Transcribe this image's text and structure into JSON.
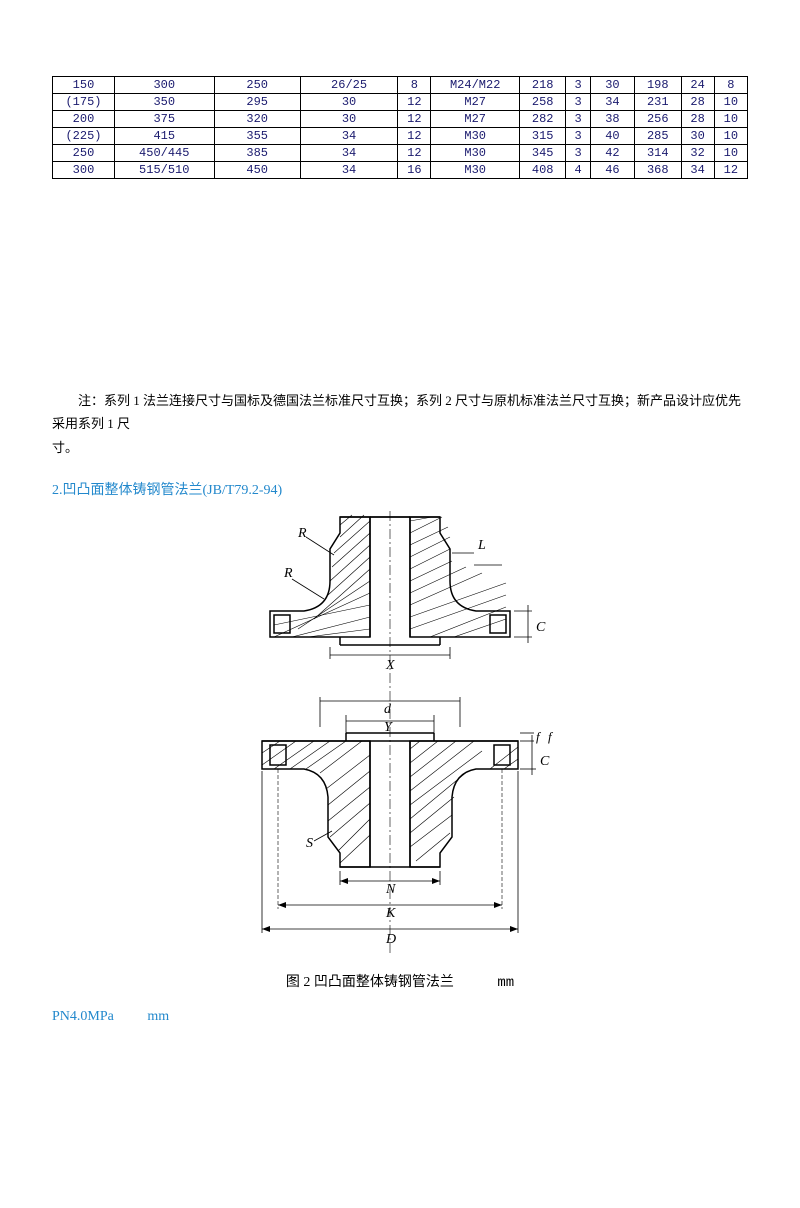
{
  "table": {
    "rows": [
      [
        "150",
        "300",
        "250",
        "26/25",
        "8",
        "M24/M22",
        "218",
        "3",
        "30",
        "198",
        "24",
        "8"
      ],
      [
        "(175)",
        "350",
        "295",
        "30",
        "12",
        "M27",
        "258",
        "3",
        "34",
        "231",
        "28",
        "10"
      ],
      [
        "200",
        "375",
        "320",
        "30",
        "12",
        "M27",
        "282",
        "3",
        "38",
        "256",
        "28",
        "10"
      ],
      [
        "(225)",
        "415",
        "355",
        "34",
        "12",
        "M30",
        "315",
        "3",
        "40",
        "285",
        "30",
        "10"
      ],
      [
        "250",
        "450/445",
        "385",
        "34",
        "12",
        "M30",
        "345",
        "3",
        "42",
        "314",
        "32",
        "10"
      ],
      [
        "300",
        "515/510",
        "450",
        "34",
        "16",
        "M30",
        "408",
        "4",
        "46",
        "368",
        "34",
        "12"
      ]
    ],
    "col_widths": [
      "56",
      "90",
      "78",
      "88",
      "30",
      "80",
      "42",
      "22",
      "40",
      "42",
      "30",
      "30"
    ]
  },
  "note": "注：系列 1 法兰连接尺寸与国标及德国法兰标准尺寸互换；系列 2 尺寸与原机标准法兰尺寸互换；新产品设计应优先采用系列 1 尺",
  "note_line2": "寸。",
  "section_title": "2.凹凸面整体铸钢管法兰(JB/T79.2-94)",
  "figure_caption": "图 2 凹凸面整体铸钢管法兰",
  "figure_unit": "mm",
  "spec_label": "PN4.0MPa",
  "spec_unit": "mm",
  "diagram_labels": {
    "R1": "R",
    "R2": "R",
    "L": "L",
    "C": "C",
    "X": "X",
    "d": "d",
    "Y": "Y",
    "f1": "f",
    "f2": "f",
    "c2": "C",
    "S": "S",
    "N": "N",
    "K": "K",
    "D": "D"
  },
  "colors": {
    "text": "#000000",
    "accent": "#2288cc",
    "table_text": "#1a1a6e",
    "border": "#000000",
    "bg": "#ffffff"
  }
}
